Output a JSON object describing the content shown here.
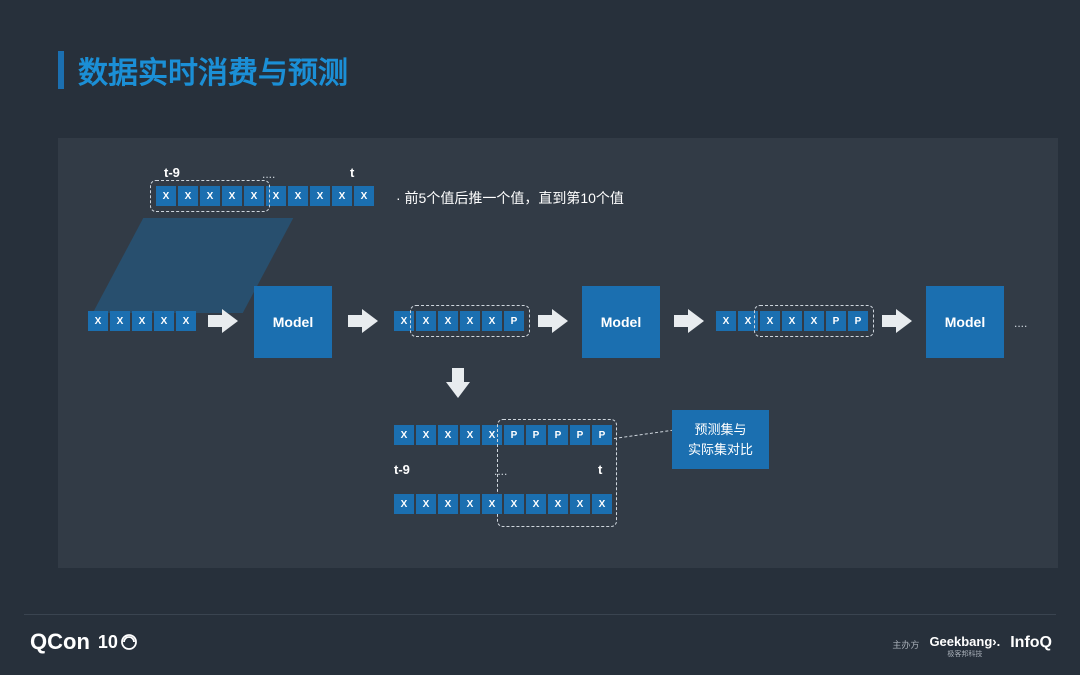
{
  "title": "数据实时消费与预测",
  "colors": {
    "bg": "#27303b",
    "panel": "#323b46",
    "accent": "#1b6fb0",
    "title": "#1b8fd6",
    "parallelogram": "#284f6e",
    "dash": "#cfd6dd",
    "arrow": "#e8ecef",
    "text": "#ffffff"
  },
  "labels": {
    "t_minus_9": "t-9",
    "t": "t",
    "dots": "....",
    "model": "Model"
  },
  "description": "· 前5个值后推一个值，直到第10个值",
  "top_sequence": [
    "X",
    "X",
    "X",
    "X",
    "X",
    "X",
    "X",
    "X",
    "X",
    "X"
  ],
  "flow": {
    "seq1": [
      "X",
      "X",
      "X",
      "X",
      "X"
    ],
    "seq2": [
      "X",
      "X",
      "X",
      "X",
      "X",
      "P"
    ],
    "seq3": [
      "X",
      "X",
      "X",
      "X",
      "X",
      "P",
      "P"
    ]
  },
  "bottom": {
    "pred": [
      "X",
      "X",
      "X",
      "X",
      "X",
      "P",
      "P",
      "P",
      "P",
      "P"
    ],
    "actual": [
      "X",
      "X",
      "X",
      "X",
      "X",
      "X",
      "X",
      "X",
      "X",
      "X"
    ],
    "t_minus_9": "t-9",
    "t": "t",
    "dots": "...."
  },
  "callout": {
    "line1": "预测集与",
    "line2": "实际集对比"
  },
  "footer": {
    "qcon": "QCon",
    "ten": "10",
    "sponsor": "主办方",
    "brand1": "Geekbang›.",
    "brand1_sub": "极客邦科技",
    "brand2": "InfoQ"
  }
}
